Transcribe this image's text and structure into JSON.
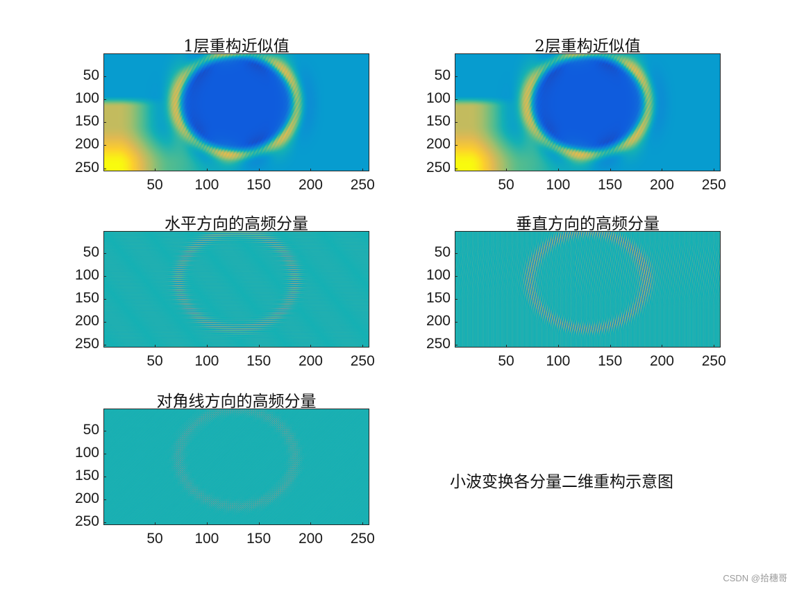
{
  "figure_note": "小波变换各分量二维重构示意图",
  "watermark": "CSDN @拾穗哥",
  "colors": {
    "axis": "#262626",
    "bg": "#ffffff"
  },
  "chart_data": [
    {
      "type": "heatmap",
      "title": "1层重构近似值",
      "xlim": [
        0.5,
        256.5
      ],
      "ylim": [
        0.5,
        256.5
      ],
      "y_reversed": true,
      "xticks": [
        "50",
        "100",
        "150",
        "200",
        "250"
      ],
      "yticks": [
        "50",
        "100",
        "150",
        "200",
        "250"
      ],
      "colormap": "parula",
      "content": "approximation"
    },
    {
      "type": "heatmap",
      "title": "2层重构近似值",
      "xlim": [
        0.5,
        256.5
      ],
      "ylim": [
        0.5,
        256.5
      ],
      "y_reversed": true,
      "xticks": [
        "50",
        "100",
        "150",
        "200",
        "250"
      ],
      "yticks": [
        "50",
        "100",
        "150",
        "200",
        "250"
      ],
      "colormap": "parula",
      "content": "approximation"
    },
    {
      "type": "heatmap",
      "title": "水平方向的高频分量",
      "xlim": [
        0.5,
        256.5
      ],
      "ylim": [
        0.5,
        256.5
      ],
      "y_reversed": true,
      "xticks": [
        "50",
        "100",
        "150",
        "200",
        "250"
      ],
      "yticks": [
        "50",
        "100",
        "150",
        "200",
        "250"
      ],
      "colormap": "parula",
      "content": "horizontal-detail"
    },
    {
      "type": "heatmap",
      "title": "垂直方向的高频分量",
      "xlim": [
        0.5,
        256.5
      ],
      "ylim": [
        0.5,
        256.5
      ],
      "y_reversed": true,
      "xticks": [
        "50",
        "100",
        "150",
        "200",
        "250"
      ],
      "yticks": [
        "50",
        "100",
        "150",
        "200",
        "250"
      ],
      "colormap": "parula",
      "content": "vertical-detail"
    },
    {
      "type": "heatmap",
      "title": "对角线方向的高频分量",
      "xlim": [
        0.5,
        256.5
      ],
      "ylim": [
        0.5,
        256.5
      ],
      "y_reversed": true,
      "xticks": [
        "50",
        "100",
        "150",
        "200",
        "250"
      ],
      "yticks": [
        "50",
        "100",
        "150",
        "200",
        "250"
      ],
      "colormap": "parula",
      "content": "diagonal-detail"
    }
  ]
}
